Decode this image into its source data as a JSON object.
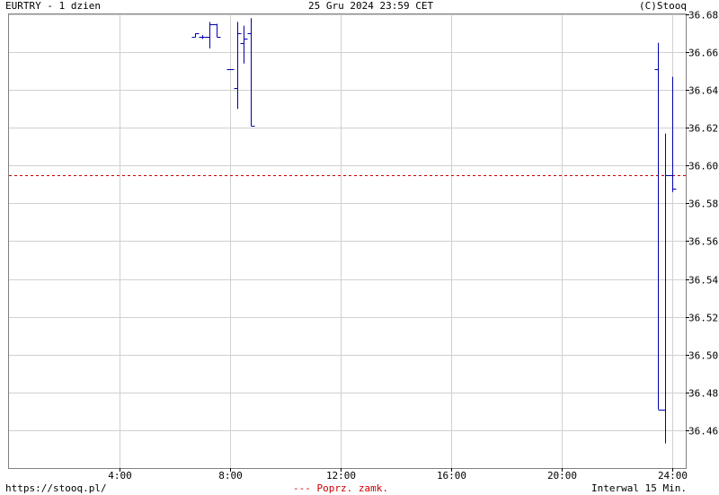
{
  "header": {
    "symbol_label": "EURTRY - 1 dzien",
    "datetime": "25 Gru 2024 23:59 CET",
    "copyright": "(C)Stooq"
  },
  "footer": {
    "url": "https://stooq.pl/",
    "legend_prev_close": "Poprz. zamk.",
    "interval": "Interwal 15 Min."
  },
  "colors": {
    "bars": "#0000aa",
    "prev_close": "#cc0000",
    "grid": "#d0d0d0"
  },
  "chart_data": {
    "type": "ohlc",
    "xlabel": "",
    "ylabel": "",
    "xlim": [
      0,
      24.5
    ],
    "ylim": [
      36.44,
      36.68
    ],
    "grid": true,
    "y_ticks": [
      "36.46",
      "36.48",
      "36.50",
      "36.52",
      "36.54",
      "36.56",
      "36.58",
      "36.60",
      "36.62",
      "36.64",
      "36.66",
      "36.68"
    ],
    "x_ticks": [
      {
        "value": 4,
        "label": "4:00"
      },
      {
        "value": 8,
        "label": "8:00"
      },
      {
        "value": 12,
        "label": "12:00"
      },
      {
        "value": 16,
        "label": "16:00"
      },
      {
        "value": 20,
        "label": "20:00"
      },
      {
        "value": 24,
        "label": "24:00"
      }
    ],
    "prev_close": 36.595,
    "series": [
      {
        "t": 6.75,
        "o": 36.668,
        "h": 36.67,
        "l": 36.668,
        "c": 36.67
      },
      {
        "t": 7.0,
        "o": 36.668,
        "h": 36.669,
        "l": 36.667,
        "c": 36.668
      },
      {
        "t": 7.25,
        "o": 36.668,
        "h": 36.676,
        "l": 36.662,
        "c": 36.675
      },
      {
        "t": 7.5,
        "o": 36.675,
        "h": 36.675,
        "l": 36.668,
        "c": 36.668
      },
      {
        "t": 8.0,
        "o": 36.651,
        "h": 36.651,
        "l": 36.651,
        "c": 36.651
      },
      {
        "t": 8.25,
        "o": 36.641,
        "h": 36.676,
        "l": 36.63,
        "c": 36.67
      },
      {
        "t": 8.5,
        "o": 36.665,
        "h": 36.674,
        "l": 36.654,
        "c": 36.667
      },
      {
        "t": 8.75,
        "o": 36.67,
        "h": 36.678,
        "l": 36.621,
        "c": 36.621
      },
      {
        "t": 23.5,
        "o": 36.651,
        "h": 36.665,
        "l": 36.471,
        "c": 36.471
      },
      {
        "t": 23.75,
        "o": 36.471,
        "h": 36.617,
        "l": 36.453,
        "c": 36.595
      },
      {
        "t": 24.0,
        "o": 36.595,
        "h": 36.647,
        "l": 36.586,
        "c": 36.588
      }
    ]
  }
}
